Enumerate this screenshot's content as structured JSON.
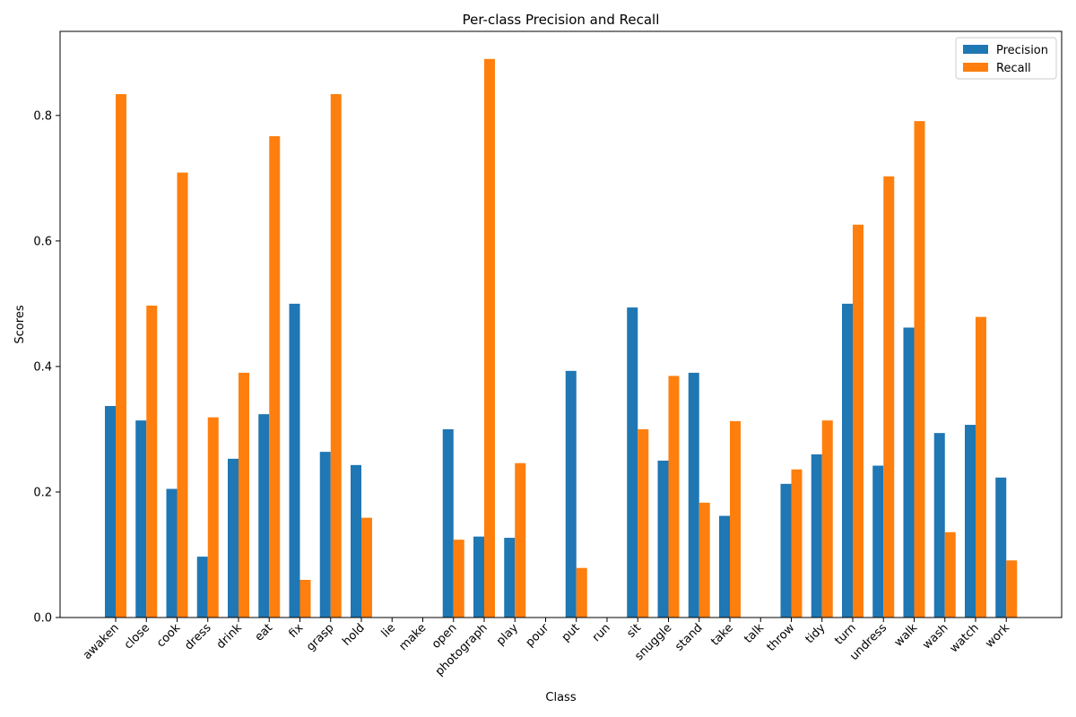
{
  "chart_data": {
    "type": "bar",
    "title": "Per-class Precision and Recall",
    "xlabel": "Class",
    "ylabel": "Scores",
    "ylim": [
      0,
      0.934
    ],
    "yticks": [
      0.0,
      0.2,
      0.4,
      0.6,
      0.8
    ],
    "ytick_labels": [
      "0.0",
      "0.2",
      "0.4",
      "0.6",
      "0.8"
    ],
    "legend_position": "top-right",
    "grid": false,
    "categories": [
      "awaken",
      "close",
      "cook",
      "dress",
      "drink",
      "eat",
      "fix",
      "grasp",
      "hold",
      "lie",
      "make",
      "open",
      "photograph",
      "play",
      "pour",
      "put",
      "run",
      "sit",
      "snuggle",
      "stand",
      "take",
      "talk",
      "throw",
      "tidy",
      "turn",
      "undress",
      "walk",
      "wash",
      "watch",
      "work"
    ],
    "series": [
      {
        "name": "Precision",
        "color": "#1f77b4",
        "values": [
          0.337,
          0.314,
          0.205,
          0.097,
          0.253,
          0.324,
          0.5,
          0.264,
          0.243,
          0.0,
          0.0,
          0.3,
          0.129,
          0.127,
          0.0,
          0.393,
          0.0,
          0.494,
          0.25,
          0.39,
          0.162,
          0.0,
          0.213,
          0.26,
          0.5,
          0.242,
          0.462,
          0.294,
          0.307,
          0.223
        ]
      },
      {
        "name": "Recall",
        "color": "#ff7f0e",
        "values": [
          0.834,
          0.497,
          0.709,
          0.319,
          0.39,
          0.767,
          0.06,
          0.834,
          0.159,
          0.0,
          0.0,
          0.124,
          0.89,
          0.246,
          0.0,
          0.079,
          0.0,
          0.3,
          0.385,
          0.183,
          0.313,
          0.0,
          0.236,
          0.314,
          0.626,
          0.703,
          0.791,
          0.136,
          0.479,
          0.091
        ]
      }
    ]
  }
}
